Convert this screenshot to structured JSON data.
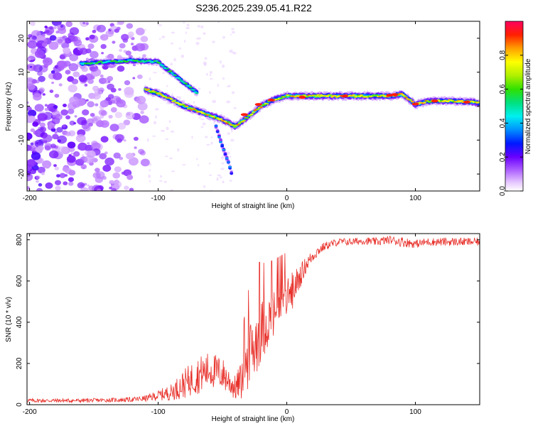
{
  "title": "S236.2025.239.05.41.R22",
  "colors": {
    "snr_line": "#e8302a",
    "axis": "#000000"
  },
  "chart_data": [
    {
      "type": "heatmap",
      "name": "spectrogram",
      "xlabel": "Height of straight line (km)",
      "ylabel": "Frequency (Hz)",
      "xlim": [
        -202,
        150
      ],
      "ylim": [
        -25,
        25
      ],
      "xticks": [
        -200,
        -100,
        0,
        100
      ],
      "xtick_labels": [
        "-200",
        "-100",
        "0",
        "100"
      ],
      "yticks": [
        -20,
        -10,
        0,
        10,
        20
      ],
      "ytick_labels": [
        "-20",
        "-10",
        "0",
        "10",
        "20"
      ],
      "colorbar": {
        "label": "Normalized spectral amplitude",
        "range": [
          0,
          1
        ],
        "ticks": [
          0.0,
          0.2,
          0.4,
          0.6,
          0.8
        ],
        "tick_labels": [
          "0.0",
          "0.2",
          "0.4",
          "0.6",
          "0.8"
        ]
      },
      "ridges": [
        {
          "name": "upper-branch",
          "points": [
            [
              -160,
              12.5
            ],
            [
              -140,
              13
            ],
            [
              -120,
              13.5
            ],
            [
              -100,
              13
            ],
            [
              -90,
              10
            ],
            [
              -80,
              7
            ],
            [
              -70,
              4
            ]
          ]
        },
        {
          "name": "main-branch",
          "points": [
            [
              -110,
              5
            ],
            [
              -95,
              3
            ],
            [
              -80,
              0
            ],
            [
              -65,
              -2
            ],
            [
              -50,
              -4
            ],
            [
              -40,
              -6
            ],
            [
              -30,
              -3
            ],
            [
              -20,
              0
            ],
            [
              -10,
              2
            ],
            [
              0,
              3
            ],
            [
              20,
              3
            ],
            [
              40,
              3
            ],
            [
              60,
              3
            ],
            [
              80,
              3
            ],
            [
              90,
              3.5
            ],
            [
              100,
              0.5
            ],
            [
              110,
              1.5
            ],
            [
              130,
              1.5
            ],
            [
              150,
              1
            ]
          ]
        },
        {
          "name": "lower-branch",
          "points": [
            [
              -55,
              -6
            ],
            [
              -50,
              -12
            ],
            [
              -45,
              -17
            ],
            [
              -42,
              -21
            ]
          ]
        }
      ]
    },
    {
      "type": "line",
      "name": "snr",
      "xlabel": "Height of straight line (km)",
      "ylabel": "SNR (10 * v/v)",
      "xlim": [
        -202,
        150
      ],
      "ylim": [
        0,
        830
      ],
      "xticks": [
        -200,
        -100,
        0,
        100
      ],
      "xtick_labels": [
        "-200",
        "-100",
        "0",
        "100"
      ],
      "yticks": [
        0,
        200,
        400,
        600,
        800
      ],
      "ytick_labels": [
        "0",
        "200",
        "400",
        "600",
        "800"
      ],
      "series": [
        {
          "name": "SNR",
          "x": [
            -202,
            -180,
            -160,
            -140,
            -120,
            -110,
            -100,
            -90,
            -80,
            -70,
            -60,
            -50,
            -40,
            -35,
            -30,
            -25,
            -20,
            -15,
            -10,
            -5,
            0,
            5,
            10,
            15,
            20,
            25,
            30,
            40,
            50,
            60,
            70,
            80,
            90,
            100,
            110,
            120,
            130,
            140,
            150
          ],
          "values": [
            20,
            20,
            20,
            22,
            25,
            30,
            45,
            60,
            100,
            140,
            170,
            150,
            80,
            120,
            220,
            300,
            360,
            400,
            440,
            480,
            520,
            560,
            620,
            680,
            720,
            750,
            770,
            790,
            790,
            795,
            790,
            800,
            790,
            780,
            790,
            790,
            790,
            790,
            790
          ],
          "amplitude": [
            10,
            10,
            10,
            10,
            12,
            15,
            25,
            40,
            70,
            90,
            90,
            80,
            60,
            100,
            150,
            180,
            150,
            130,
            120,
            110,
            100,
            90,
            60,
            40,
            30,
            25,
            20,
            18,
            18,
            18,
            20,
            20,
            25,
            20,
            20,
            20,
            20,
            20,
            20
          ]
        }
      ]
    }
  ]
}
